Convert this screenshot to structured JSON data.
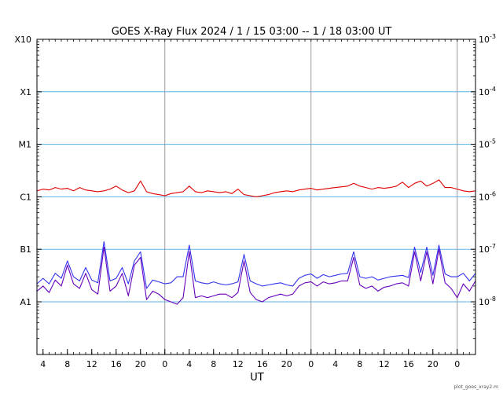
{
  "chart_data": {
    "type": "line",
    "title": "GOES X-Ray Flux   2024  /  1 / 15   03:00 --  1 / 18   03:00   UT",
    "xlabel": "UT",
    "footer": "plot_goes_xray2.m",
    "x_range_hours": [
      0,
      72
    ],
    "y_scale": "log",
    "ylim": [
      1e-09,
      0.001
    ],
    "grid": "horizontal class lines at 1e-8..1e-4; vertical lines at 0 UT",
    "x_tick_labels": [
      "4",
      "8",
      "12",
      "16",
      "20",
      "0",
      "4",
      "8",
      "12",
      "16",
      "20",
      "0",
      "4",
      "8",
      "12",
      "16",
      "20",
      "0"
    ],
    "x_tick_hours": [
      1,
      5,
      9,
      13,
      17,
      21,
      25,
      29,
      33,
      37,
      41,
      45,
      49,
      53,
      57,
      61,
      65,
      69
    ],
    "day_boundaries_hours": [
      21,
      45,
      69
    ],
    "class_labels": [
      {
        "label": "X10",
        "flux": 0.001
      },
      {
        "label": "X1",
        "flux": 0.0001
      },
      {
        "label": "M1",
        "flux": 1e-05
      },
      {
        "label": "C1",
        "flux": 1e-06
      },
      {
        "label": "B1",
        "flux": 1e-07
      },
      {
        "label": "A1",
        "flux": 1e-08
      }
    ],
    "right_axis": [
      {
        "base": "10",
        "exp": "-3",
        "flux": 0.001
      },
      {
        "base": "10",
        "exp": "-4",
        "flux": 0.0001
      },
      {
        "base": "10",
        "exp": "-5",
        "flux": 1e-05
      },
      {
        "base": "10",
        "exp": "-6",
        "flux": 1e-06
      },
      {
        "base": "10",
        "exp": "-7",
        "flux": 1e-07
      },
      {
        "base": "10",
        "exp": "-8",
        "flux": 1e-08
      }
    ],
    "colors": {
      "long": "#e00000",
      "short_a": "#3333ee",
      "short_b": "#6600bb",
      "grid": "#5ab4e6",
      "day": "#999999"
    },
    "series": [
      {
        "color": "#e00000",
        "x": [
          0,
          1,
          2,
          3,
          4,
          5,
          6,
          7,
          8,
          9,
          10,
          11,
          12,
          13,
          14,
          15,
          16,
          17,
          18,
          19,
          20,
          21,
          22,
          23,
          24,
          25,
          26,
          27,
          28,
          29,
          30,
          31,
          32,
          33,
          34,
          35,
          36,
          37,
          38,
          39,
          40,
          41,
          42,
          43,
          44,
          45,
          46,
          47,
          48,
          49,
          50,
          51,
          52,
          53,
          54,
          55,
          56,
          57,
          58,
          59,
          60,
          61,
          62,
          63,
          64,
          65,
          66,
          67,
          68,
          69,
          70,
          71,
          72
        ],
        "y": [
          1.3e-06,
          1.4e-06,
          1.35e-06,
          1.5e-06,
          1.4e-06,
          1.45e-06,
          1.3e-06,
          1.5e-06,
          1.35e-06,
          1.3e-06,
          1.25e-06,
          1.3e-06,
          1.4e-06,
          1.6e-06,
          1.35e-06,
          1.2e-06,
          1.3e-06,
          2e-06,
          1.25e-06,
          1.15e-06,
          1.1e-06,
          1.05e-06,
          1.15e-06,
          1.2e-06,
          1.25e-06,
          1.6e-06,
          1.25e-06,
          1.2e-06,
          1.3e-06,
          1.25e-06,
          1.2e-06,
          1.25e-06,
          1.15e-06,
          1.4e-06,
          1.1e-06,
          1.05e-06,
          1e-06,
          1.05e-06,
          1.1e-06,
          1.2e-06,
          1.25e-06,
          1.3e-06,
          1.25e-06,
          1.35e-06,
          1.4e-06,
          1.45e-06,
          1.35e-06,
          1.4e-06,
          1.45e-06,
          1.5e-06,
          1.55e-06,
          1.6e-06,
          1.8e-06,
          1.6e-06,
          1.5e-06,
          1.4e-06,
          1.5e-06,
          1.45e-06,
          1.5e-06,
          1.6e-06,
          1.9e-06,
          1.5e-06,
          1.8e-06,
          2e-06,
          1.6e-06,
          1.8e-06,
          2.1e-06,
          1.5e-06,
          1.5e-06,
          1.4e-06,
          1.3e-06,
          1.25e-06,
          1.3e-06
        ]
      },
      {
        "color": "#3333ee",
        "x": [
          0,
          1,
          2,
          3,
          4,
          5,
          6,
          7,
          8,
          9,
          10,
          11,
          12,
          13,
          14,
          15,
          16,
          17,
          18,
          19,
          20,
          21,
          22,
          23,
          24,
          25,
          26,
          27,
          28,
          29,
          30,
          31,
          32,
          33,
          34,
          35,
          36,
          37,
          38,
          39,
          40,
          41,
          42,
          43,
          44,
          45,
          46,
          47,
          48,
          49,
          50,
          51,
          52,
          53,
          54,
          55,
          56,
          57,
          58,
          59,
          60,
          61,
          62,
          63,
          64,
          65,
          66,
          67,
          68,
          69,
          70,
          71,
          72
        ],
        "y": [
          2.2e-08,
          2.8e-08,
          2.2e-08,
          3.5e-08,
          2.8e-08,
          6e-08,
          3e-08,
          2.5e-08,
          4.5e-08,
          2.6e-08,
          2.3e-08,
          1.4e-07,
          2.5e-08,
          2.8e-08,
          4.5e-08,
          2.2e-08,
          6e-08,
          9e-08,
          1.8e-08,
          2.6e-08,
          2.4e-08,
          2.2e-08,
          2.3e-08,
          3e-08,
          3e-08,
          1.2e-07,
          2.5e-08,
          2.3e-08,
          2.2e-08,
          2.4e-08,
          2.2e-08,
          2.1e-08,
          2.2e-08,
          2.4e-08,
          8e-08,
          2.5e-08,
          2.2e-08,
          2e-08,
          2.1e-08,
          2.2e-08,
          2.3e-08,
          2.1e-08,
          2e-08,
          2.8e-08,
          3.2e-08,
          3.4e-08,
          2.8e-08,
          3.3e-08,
          3e-08,
          3.2e-08,
          3.4e-08,
          3.5e-08,
          9e-08,
          3e-08,
          2.8e-08,
          3e-08,
          2.6e-08,
          2.8e-08,
          3e-08,
          3.1e-08,
          3.2e-08,
          2.9e-08,
          1.1e-07,
          3.6e-08,
          1.1e-07,
          3.2e-08,
          1.2e-07,
          3.4e-08,
          3e-08,
          3e-08,
          3.5e-08,
          2.5e-08,
          3.5e-08
        ]
      },
      {
        "color": "#6600bb",
        "x": [
          0,
          1,
          2,
          3,
          4,
          5,
          6,
          7,
          8,
          9,
          10,
          11,
          12,
          13,
          14,
          15,
          16,
          17,
          18,
          19,
          20,
          21,
          22,
          23,
          24,
          25,
          26,
          27,
          28,
          29,
          30,
          31,
          32,
          33,
          34,
          35,
          36,
          37,
          38,
          39,
          40,
          41,
          42,
          43,
          44,
          45,
          46,
          47,
          48,
          49,
          50,
          51,
          52,
          53,
          54,
          55,
          56,
          57,
          58,
          59,
          60,
          61,
          62,
          63,
          64,
          65,
          66,
          67,
          68,
          69,
          70,
          71,
          72
        ],
        "y": [
          1.6e-08,
          2e-08,
          1.5e-08,
          2.6e-08,
          2e-08,
          5e-08,
          2.2e-08,
          1.8e-08,
          3.5e-08,
          1.7e-08,
          1.4e-08,
          1.1e-07,
          1.6e-08,
          2e-08,
          3.5e-08,
          1.3e-08,
          5e-08,
          7e-08,
          1.1e-08,
          1.6e-08,
          1.4e-08,
          1.1e-08,
          1e-08,
          9e-09,
          1.2e-08,
          9e-08,
          1.2e-08,
          1.3e-08,
          1.2e-08,
          1.3e-08,
          1.4e-08,
          1.4e-08,
          1.2e-08,
          1.5e-08,
          6e-08,
          1.5e-08,
          1.1e-08,
          1e-08,
          1.2e-08,
          1.3e-08,
          1.4e-08,
          1.3e-08,
          1.4e-08,
          2e-08,
          2.3e-08,
          2.4e-08,
          2e-08,
          2.4e-08,
          2.2e-08,
          2.3e-08,
          2.5e-08,
          2.5e-08,
          7e-08,
          2.1e-08,
          1.8e-08,
          2e-08,
          1.6e-08,
          1.9e-08,
          2e-08,
          2.2e-08,
          2.3e-08,
          2e-08,
          9e-08,
          2.5e-08,
          9e-08,
          2.2e-08,
          1e-07,
          2.3e-08,
          1.8e-08,
          1.2e-08,
          2.2e-08,
          1.6e-08,
          2.5e-08
        ]
      }
    ]
  }
}
